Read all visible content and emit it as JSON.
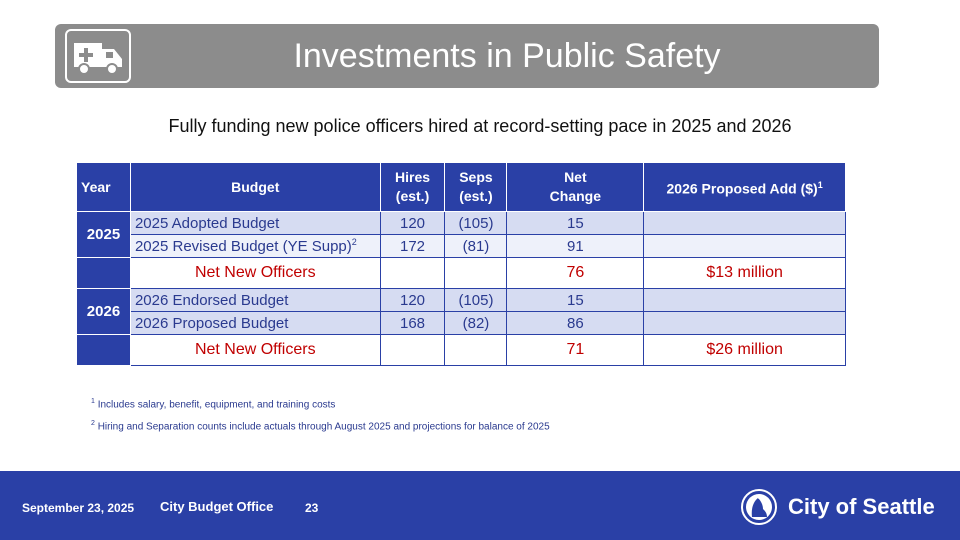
{
  "title": "Investments in Public Safety",
  "title_icon": "ambulance-icon",
  "subtitle": "Fully funding new police officers hired at record-setting pace in 2025 and 2026",
  "table": {
    "headers": {
      "year": "Year",
      "budget": "Budget",
      "hires_line1": "Hires",
      "hires_line2": "(est.)",
      "seps_line1": "Seps",
      "seps_line2": "(est.)",
      "net_line1": "Net",
      "net_line2": "Change",
      "add": "2026 Proposed Add ($)",
      "add_sup": "1"
    },
    "year_2025": "2025",
    "year_2026": "2026",
    "rows": [
      {
        "budget": "2025 Adopted Budget",
        "sup": "",
        "hires": "120",
        "seps": "(105)",
        "net": "15",
        "add": ""
      },
      {
        "budget": "2025 Revised Budget (YE Supp)",
        "sup": "2",
        "hires": "172",
        "seps": "(81)",
        "net": "91",
        "add": ""
      },
      {
        "budget": "Net New Officers",
        "sup": "",
        "hires": "",
        "seps": "",
        "net": "76",
        "add": "$13 million"
      },
      {
        "budget": "2026 Endorsed Budget",
        "sup": "",
        "hires": "120",
        "seps": "(105)",
        "net": "15",
        "add": ""
      },
      {
        "budget": "2026 Proposed Budget",
        "sup": "",
        "hires": "168",
        "seps": "(82)",
        "net": "86",
        "add": ""
      },
      {
        "budget": "Net New Officers",
        "sup": "",
        "hires": "",
        "seps": "",
        "net": "71",
        "add": "$26 million"
      }
    ]
  },
  "footnotes": [
    {
      "num": "1",
      "text": "Includes salary, benefit, equipment, and training costs"
    },
    {
      "num": "2",
      "text": "Hiring and Separation counts include actuals through August 2025 and projections for balance of 2025"
    }
  ],
  "footer": {
    "date": "September 23, 2025",
    "office": "City Budget Office",
    "page": "23",
    "city": "City of Seattle",
    "logo_icon": "seattle-seal-icon",
    "background": "#2a40a6"
  },
  "colors": {
    "header_blue": "#2a40a6",
    "net_red": "#c00000",
    "title_gray": "#8c8c8c"
  }
}
